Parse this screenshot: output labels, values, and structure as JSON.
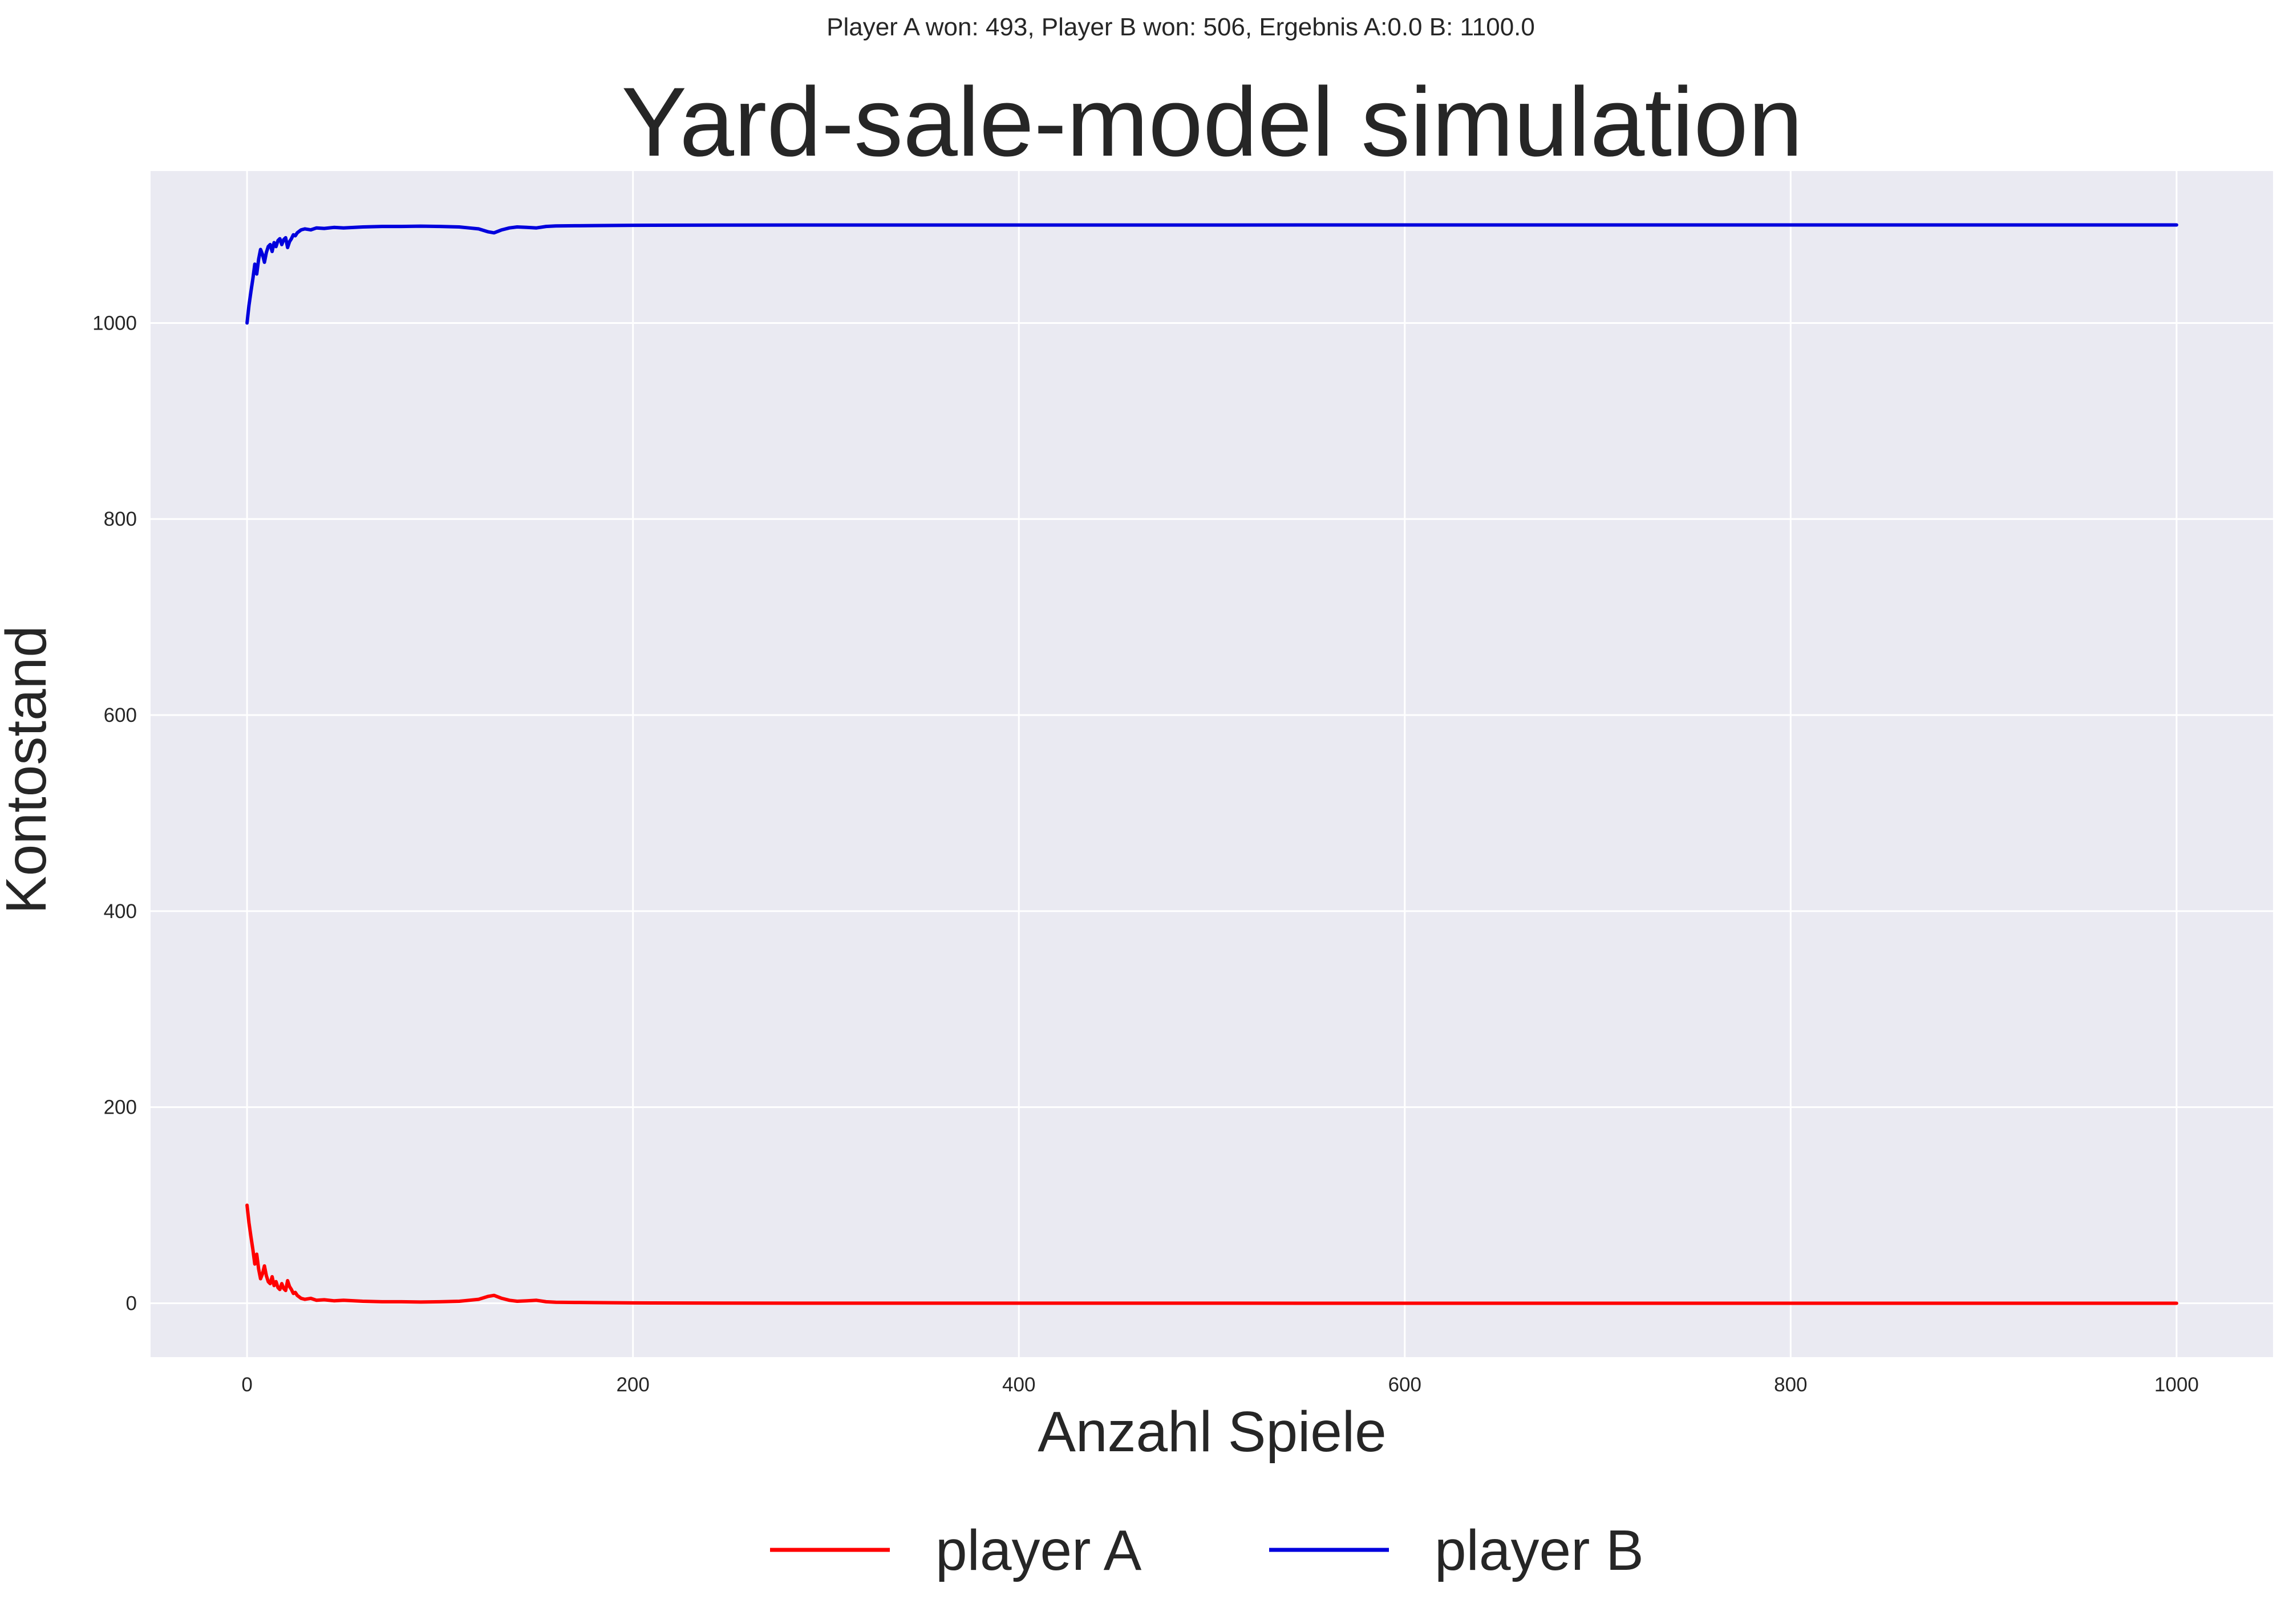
{
  "chart_data": {
    "type": "line",
    "suptitle": "Player A won: 493, Player B won: 506, Ergebnis A:0.0 B: 1100.0",
    "title": "Yard-sale-model simulation",
    "xlabel": "Anzahl Spiele",
    "ylabel": "Kontostand",
    "xlim": [
      -50,
      1050
    ],
    "ylim": [
      -55,
      1155
    ],
    "xticks": [
      0,
      200,
      400,
      600,
      800,
      1000
    ],
    "yticks": [
      0,
      200,
      400,
      600,
      800,
      1000
    ],
    "grid": true,
    "legend_position": "bottom-center",
    "colors": {
      "plot_background": "#eaeaf2",
      "grid": "#ffffff"
    },
    "series": [
      {
        "name": "player A",
        "color": "#ff0000",
        "x": [
          0,
          1,
          2,
          3,
          4,
          5,
          6,
          7,
          8,
          9,
          10,
          11,
          12,
          13,
          14,
          15,
          16,
          17,
          18,
          19,
          20,
          21,
          22,
          23,
          24,
          25,
          26,
          28,
          30,
          33,
          36,
          40,
          45,
          50,
          60,
          70,
          80,
          90,
          100,
          110,
          115,
          120,
          125,
          128,
          132,
          136,
          140,
          145,
          150,
          155,
          160,
          170,
          180,
          200,
          250,
          300,
          400,
          500,
          600,
          700,
          800,
          900,
          1000
        ],
        "y": [
          100,
          82,
          68,
          55,
          40,
          50,
          35,
          25,
          30,
          38,
          28,
          22,
          20,
          27,
          18,
          22,
          16,
          14,
          20,
          15,
          13,
          23,
          17,
          14,
          10,
          11,
          8,
          5,
          4,
          5,
          3,
          3.5,
          2.5,
          3,
          2,
          1.5,
          1.5,
          1.2,
          1.5,
          2,
          3,
          4,
          7,
          8,
          5,
          3,
          2,
          2.5,
          3,
          1.5,
          1,
          0.8,
          0.6,
          0.3,
          0.1,
          0.05,
          0.02,
          0.01,
          0,
          0,
          0,
          0,
          0
        ]
      },
      {
        "name": "player B",
        "color": "#0000dd",
        "x": [
          0,
          1,
          2,
          3,
          4,
          5,
          6,
          7,
          8,
          9,
          10,
          11,
          12,
          13,
          14,
          15,
          16,
          17,
          18,
          19,
          20,
          21,
          22,
          23,
          24,
          25,
          26,
          28,
          30,
          33,
          36,
          40,
          45,
          50,
          60,
          70,
          80,
          90,
          100,
          110,
          115,
          120,
          125,
          128,
          132,
          136,
          140,
          145,
          150,
          155,
          160,
          170,
          180,
          200,
          250,
          300,
          400,
          500,
          600,
          700,
          800,
          900,
          1000
        ],
        "y": [
          1000,
          1018,
          1032,
          1045,
          1060,
          1050,
          1065,
          1075,
          1070,
          1062,
          1072,
          1078,
          1080,
          1073,
          1082,
          1078,
          1084,
          1086,
          1080,
          1085,
          1087,
          1077,
          1083,
          1086,
          1090,
          1089,
          1092,
          1095,
          1096,
          1095,
          1097,
          1096.5,
          1097.5,
          1097,
          1098,
          1098.5,
          1098.5,
          1098.8,
          1098.5,
          1098,
          1097,
          1096,
          1093,
          1092,
          1095,
          1097,
          1098,
          1097.5,
          1097,
          1098.5,
          1099,
          1099.2,
          1099.4,
          1099.7,
          1099.9,
          1099.95,
          1099.98,
          1099.99,
          1100,
          1100,
          1100,
          1100,
          1100
        ]
      }
    ]
  }
}
